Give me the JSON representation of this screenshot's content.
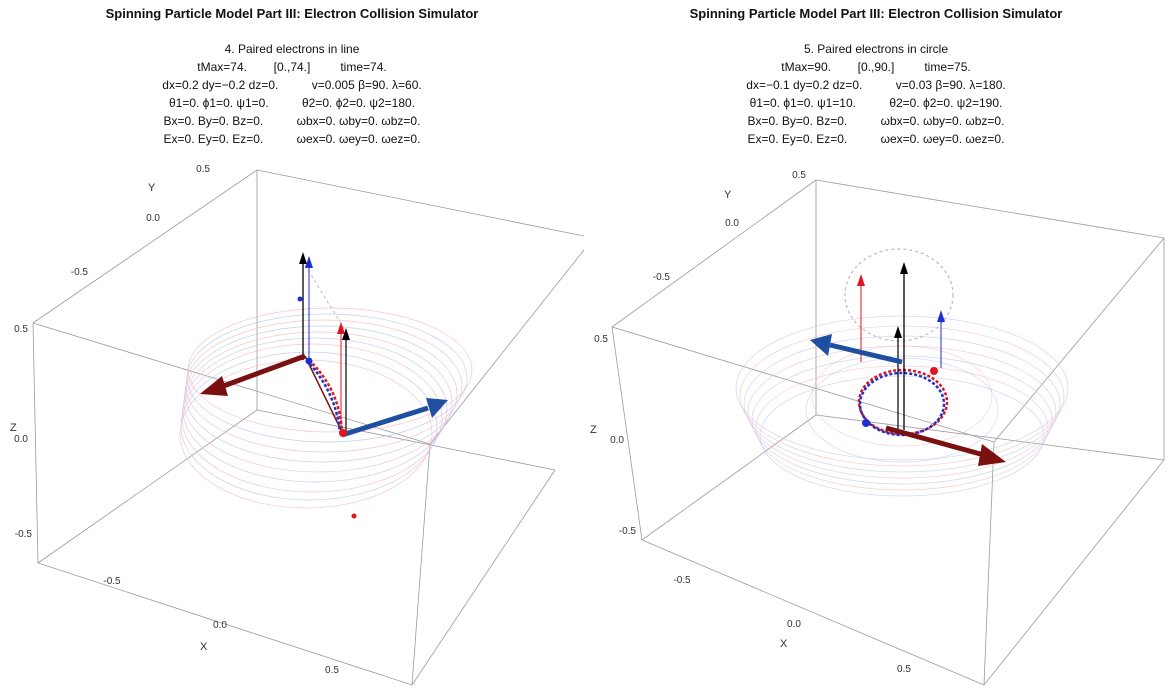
{
  "panels": [
    {
      "title": "Spinning Particle Model Part III: Electron Collision Simulator",
      "subtitle": "4. Paired electrons in line",
      "rows": [
        "tMax=74.        [0.,74.]         time=74.",
        "dx=0.2 dy=−0.2 dz=0.          v=0.005 β=90. λ=60.",
        "θ1=0. ϕ1=0. ψ1=0.          θ2=0. ϕ2=0. ψ2=180.",
        "Bx=0. By=0. Bz=0.          ωbx=0. ωby=0. ωbz=0.",
        "Ex=0. Ey=0. Ez=0.          ωex=0. ωey=0. ωez=0."
      ],
      "axes": {
        "x_label": "X",
        "y_label": "Y",
        "z_label": "Z",
        "x_ticks": [
          "-0.5",
          "0.0",
          "0.5"
        ],
        "y_ticks": [
          "0.5",
          "0.0",
          "-0.5"
        ],
        "z_ticks": [
          "0.5",
          "0.0",
          "-0.5"
        ]
      }
    },
    {
      "title": "Spinning Particle Model Part III: Electron Collision Simulator",
      "subtitle": "5. Paired electrons in circle",
      "rows": [
        "tMax=90.        [0.,90.]         time=75.",
        "dx=−0.1 dy=0.2 dz=0.          v=0.03 β=90. λ=180.",
        "θ1=0. ϕ1=0. ψ1=10.          θ2=0. ϕ2=0. ψ2=190.",
        "Bx=0. By=0. Bz=0.          ωbx=0. ωby=0. ωbz=0.",
        "Ex=0. Ey=0. Ez=0.          ωex=0. ωey=0. ωez=0."
      ],
      "axes": {
        "x_label": "X",
        "y_label": "Y",
        "z_label": "Z",
        "x_ticks": [
          "-0.5",
          "0.0",
          "0.5"
        ],
        "y_ticks": [
          "0.5",
          "0.0",
          "-0.5"
        ],
        "z_ticks": [
          "0.5",
          "0.0",
          "-0.5"
        ]
      }
    }
  ],
  "colors": {
    "electron_1": "#e0141e",
    "electron_2": "#1c2fd0",
    "spin_arrow_red": "#7a1010",
    "spin_arrow_blue": "#1f4fa0",
    "axis_arrow": "#000000",
    "box": "#9a9a9a"
  }
}
